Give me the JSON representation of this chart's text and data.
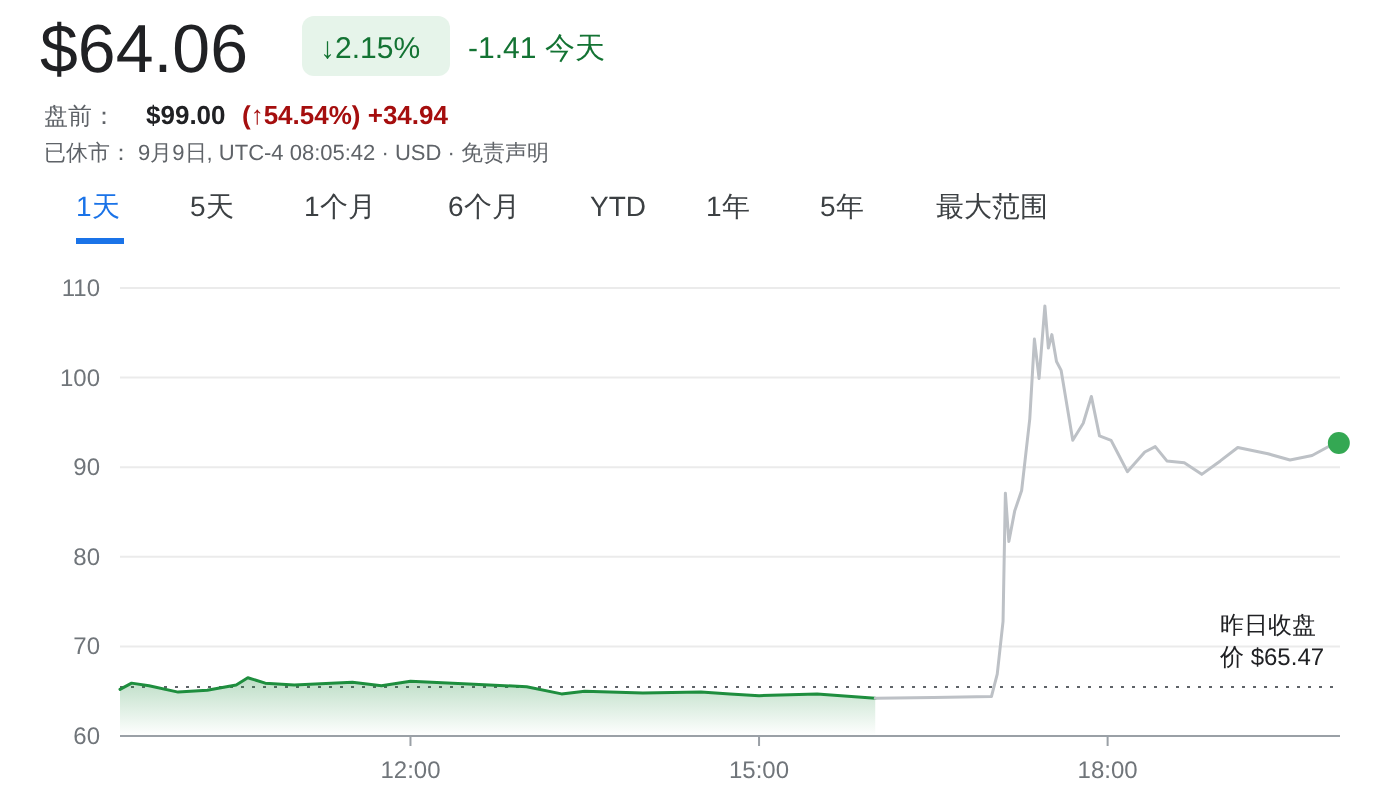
{
  "chart_data": {
    "type": "line",
    "title": "$64.06",
    "annotations": [
      "↓2.15%",
      "-1.41 今天",
      "盘前：",
      "$99.00",
      "(↑54.54%) +34.94",
      "已休市： 9月9日, UTC-4 08:05:42 · USD · 免责声明",
      "1天",
      "5天",
      "1个月",
      "6个月",
      "YTD",
      "1年",
      "5年",
      "最大范围"
    ],
    "xlim": [
      9.5,
      20
    ],
    "xticks": [
      {
        "value": 12,
        "label": "12:00"
      },
      {
        "value": 15,
        "label": "15:00"
      },
      {
        "value": 18,
        "label": "18:00"
      }
    ],
    "ylim": [
      60,
      110
    ],
    "yticks": [
      60,
      70,
      80,
      90,
      100,
      110
    ],
    "grid": "y",
    "ref_lines": [
      {
        "axis": "y",
        "value": 65.47,
        "label": "昨日收盘价 $65.47",
        "color": "#5f6368",
        "line_style": "dotted"
      }
    ],
    "series": [
      {
        "type": "area",
        "color": "#1e8e3e",
        "x": [
          9.5,
          9.6,
          9.75,
          10,
          10.25,
          10.5,
          10.6,
          10.75,
          11,
          11.5,
          11.75,
          12,
          12.5,
          13,
          13.3,
          13.5,
          14,
          14.5,
          14.75,
          15,
          15.5,
          16
        ],
        "values": [
          65.2,
          65.9,
          65.6,
          64.9,
          65.1,
          65.7,
          66.5,
          65.9,
          65.7,
          66.0,
          65.6,
          66.1,
          65.8,
          65.5,
          64.7,
          65.0,
          64.8,
          64.9,
          64.7,
          64.5,
          64.7,
          64.2
        ]
      },
      {
        "color": "#bdc1c6",
        "x": [
          16,
          16.5,
          17,
          17.05,
          17.1,
          17.12,
          17.15,
          17.2,
          17.26,
          17.33,
          17.37,
          17.41,
          17.46,
          17.49,
          17.52,
          17.56,
          17.6,
          17.7,
          17.79,
          17.86,
          17.93,
          18.03,
          18.09,
          18.17,
          18.32,
          18.41,
          18.51,
          18.66,
          18.81,
          18.97,
          19.12,
          19.38,
          19.57,
          19.76,
          19.93,
          19.99
        ],
        "values": [
          64.2,
          64.3,
          64.4,
          66.9,
          72.8,
          87.1,
          81.7,
          85.1,
          87.4,
          95.4,
          104.3,
          99.9,
          108.0,
          103.3,
          104.8,
          101.8,
          100.8,
          93.0,
          94.9,
          97.9,
          93.5,
          93.0,
          91.5,
          89.5,
          91.7,
          92.3,
          90.7,
          90.5,
          89.2,
          90.7,
          92.2,
          91.5,
          90.8,
          91.3,
          92.5,
          92.7
        ]
      },
      {
        "type": "scatter",
        "color": "#34a853",
        "marker": "circle",
        "x": [
          19.99
        ],
        "values": [
          92.7
        ]
      }
    ]
  }
}
